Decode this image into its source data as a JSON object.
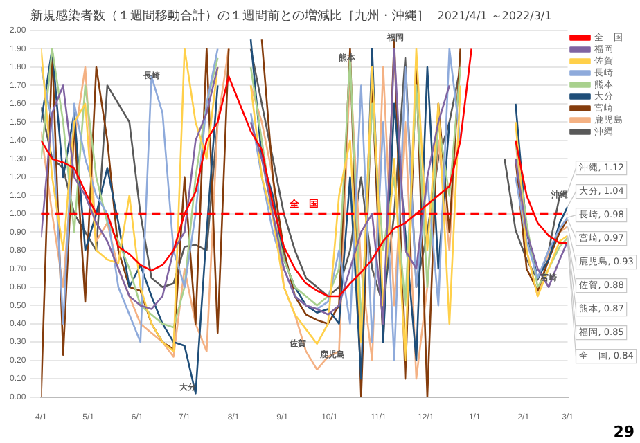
{
  "chart_data": {
    "type": "line",
    "title": "新規感染者数（１週間移動合計）の１週間前との増減比［九州・沖縄］",
    "subtitle": "2021/4/1 ～2022/3/1",
    "x": [
      "2021-04-01",
      "2021-04-08",
      "2021-04-15",
      "2021-04-22",
      "2021-04-29",
      "2021-05-06",
      "2021-05-13",
      "2021-05-20",
      "2021-05-27",
      "2021-06-03",
      "2021-06-10",
      "2021-06-17",
      "2021-06-24",
      "2021-07-01",
      "2021-07-08",
      "2021-07-15",
      "2021-07-22",
      "2021-07-29",
      "2021-08-05",
      "2021-08-12",
      "2021-08-19",
      "2021-08-26",
      "2021-09-02",
      "2021-09-09",
      "2021-09-16",
      "2021-09-23",
      "2021-09-30",
      "2021-10-07",
      "2021-10-14",
      "2021-10-21",
      "2021-10-28",
      "2021-11-04",
      "2021-11-11",
      "2021-11-18",
      "2021-11-25",
      "2021-12-02",
      "2021-12-09",
      "2021-12-16",
      "2021-12-23",
      "2021-12-30",
      "2022-01-06",
      "2022-01-13",
      "2022-01-20",
      "2022-01-27",
      "2022-02-03",
      "2022-02-10",
      "2022-02-17",
      "2022-02-24",
      "2022-03-01"
    ],
    "xlim": [
      "2021-04-01",
      "2022-03-01"
    ],
    "xticks": [
      {
        "value": "2021-04-01",
        "label": "4/1"
      },
      {
        "value": "2021-05-01",
        "label": "5/1"
      },
      {
        "value": "2021-06-01",
        "label": "6/1"
      },
      {
        "value": "2021-07-01",
        "label": "7/1"
      },
      {
        "value": "2021-08-01",
        "label": "8/1"
      },
      {
        "value": "2021-09-01",
        "label": "9/1"
      },
      {
        "value": "2021-10-01",
        "label": "10/1"
      },
      {
        "value": "2021-11-01",
        "label": "11/1"
      },
      {
        "value": "2021-12-01",
        "label": "12/1"
      },
      {
        "value": "2022-01-01",
        "label": "1/1"
      },
      {
        "value": "2022-02-01",
        "label": "2/1"
      },
      {
        "value": "2022-03-01",
        "label": "3/1"
      }
    ],
    "ylim": [
      0,
      2
    ],
    "yticks": [
      {
        "value": 0,
        "label": "0.00"
      },
      {
        "value": 0.1,
        "label": "0.10"
      },
      {
        "value": 0.2,
        "label": "0.20"
      },
      {
        "value": 0.3,
        "label": "0.30"
      },
      {
        "value": 0.4,
        "label": "0.40"
      },
      {
        "value": 0.5,
        "label": "0.50"
      },
      {
        "value": 0.6,
        "label": "0.60"
      },
      {
        "value": 0.7,
        "label": "0.70"
      },
      {
        "value": 0.8,
        "label": "0.80"
      },
      {
        "value": 0.9,
        "label": "0.90"
      },
      {
        "value": 1,
        "label": "1.00"
      },
      {
        "value": 1.1,
        "label": "1.10"
      },
      {
        "value": 1.2,
        "label": "1.20"
      },
      {
        "value": 1.3,
        "label": "1.30"
      },
      {
        "value": 1.4,
        "label": "1.40"
      },
      {
        "value": 1.5,
        "label": "1.50"
      },
      {
        "value": 1.6,
        "label": "1.60"
      },
      {
        "value": 1.7,
        "label": "1.70"
      },
      {
        "value": 1.8,
        "label": "1.80"
      },
      {
        "value": 1.9,
        "label": "1.90"
      },
      {
        "value": 2,
        "label": "2.00"
      }
    ],
    "grid": "y",
    "legend": "right",
    "marker": "none",
    "series": [
      {
        "name": "全　国",
        "color": "#ff0000",
        "values": [
          1.4,
          1.3,
          1.28,
          1.25,
          1.12,
          1.0,
          1.0,
          0.82,
          0.78,
          0.72,
          0.69,
          0.72,
          0.8,
          1.0,
          1.12,
          1.4,
          1.5,
          1.75,
          1.6,
          1.45,
          1.35,
          1.05,
          0.82,
          0.7,
          0.62,
          0.58,
          0.55,
          0.55,
          0.62,
          0.68,
          0.75,
          0.85,
          0.92,
          0.95,
          1.0,
          1.05,
          1.1,
          1.15,
          1.4,
          1.9,
          null,
          null,
          null,
          1.4,
          1.1,
          0.95,
          0.88,
          0.84,
          0.84
        ],
        "value_labels": [
          null,
          null,
          null,
          null,
          null,
          null,
          null,
          null,
          null,
          null,
          null,
          null,
          null,
          null,
          null,
          null,
          null,
          null,
          null,
          null,
          null,
          null,
          null,
          null,
          null,
          null,
          null,
          null,
          null,
          null,
          null,
          null,
          null,
          null,
          null,
          null,
          null,
          null,
          null,
          null,
          null,
          null,
          null,
          null,
          null,
          null,
          null,
          null,
          "全　国, 0.84"
        ]
      },
      {
        "name": "福岡",
        "color": "#8064a2",
        "values": [
          0.87,
          1.55,
          1.7,
          1.2,
          1.1,
          0.95,
          0.85,
          0.7,
          0.55,
          0.5,
          0.48,
          0.55,
          0.8,
          0.9,
          1.4,
          1.55,
          1.8,
          null,
          null,
          1.5,
          1.3,
          1.0,
          0.7,
          0.55,
          0.5,
          0.48,
          0.45,
          0.5,
          0.7,
          0.9,
          1.0,
          0.4,
          1.9,
          0.8,
          0.7,
          1.2,
          1.5,
          1.7,
          null,
          null,
          null,
          null,
          null,
          1.3,
          0.9,
          0.7,
          0.6,
          0.75,
          0.85
        ],
        "value_labels": [
          null,
          null,
          null,
          null,
          null,
          null,
          null,
          null,
          null,
          null,
          null,
          null,
          null,
          null,
          null,
          null,
          null,
          null,
          null,
          null,
          null,
          null,
          null,
          null,
          null,
          null,
          null,
          null,
          null,
          null,
          null,
          null,
          null,
          null,
          null,
          null,
          null,
          null,
          null,
          null,
          null,
          null,
          null,
          null,
          null,
          null,
          null,
          null,
          "福岡, 0.85"
        ]
      },
      {
        "name": "佐賀",
        "color": "#ffd04a",
        "values": [
          1.9,
          1.2,
          0.8,
          1.5,
          1.6,
          0.8,
          0.75,
          0.73,
          1.1,
          0.6,
          0.4,
          0.3,
          0.25,
          1.9,
          1.5,
          1.3,
          1.8,
          null,
          null,
          1.7,
          1.2,
          0.98,
          0.6,
          0.45,
          0.37,
          0.29,
          0.4,
          1.1,
          1.4,
          0.3,
          1.8,
          0.5,
          1.3,
          0.2,
          1.9,
          0.8,
          1.6,
          0.4,
          1.7,
          null,
          null,
          null,
          null,
          1.5,
          0.8,
          0.55,
          0.7,
          0.85,
          0.88
        ],
        "value_labels": [
          null,
          null,
          null,
          null,
          null,
          null,
          null,
          null,
          null,
          null,
          null,
          null,
          null,
          null,
          null,
          null,
          null,
          null,
          null,
          null,
          null,
          null,
          null,
          null,
          null,
          null,
          null,
          null,
          null,
          null,
          null,
          null,
          null,
          null,
          null,
          null,
          null,
          null,
          null,
          null,
          null,
          null,
          null,
          null,
          null,
          null,
          null,
          null,
          "佐賀, 0.88"
        ]
      },
      {
        "name": "長崎",
        "color": "#8eaadb",
        "values": [
          1.8,
          1.5,
          0.4,
          1.6,
          1.3,
          1.1,
          1.0,
          0.6,
          0.45,
          0.3,
          1.75,
          1.55,
          0.8,
          0.6,
          1.0,
          1.6,
          1.9,
          null,
          null,
          1.55,
          1.2,
          0.9,
          0.7,
          0.55,
          0.5,
          0.48,
          0.52,
          0.8,
          0.4,
          1.7,
          0.3,
          1.5,
          0.2,
          1.8,
          0.6,
          1.2,
          0.5,
          1.9,
          1.4,
          null,
          null,
          null,
          null,
          1.2,
          0.85,
          0.65,
          0.8,
          0.92,
          0.98
        ],
        "value_labels": [
          null,
          null,
          null,
          null,
          null,
          null,
          null,
          null,
          null,
          null,
          null,
          null,
          null,
          null,
          null,
          null,
          null,
          null,
          null,
          null,
          null,
          null,
          null,
          null,
          null,
          null,
          null,
          null,
          null,
          null,
          null,
          null,
          null,
          null,
          null,
          null,
          null,
          null,
          null,
          null,
          null,
          null,
          null,
          null,
          null,
          null,
          null,
          null,
          "長崎, 0.98"
        ]
      },
      {
        "name": "熊本",
        "color": "#a9d18e",
        "values": [
          1.3,
          1.9,
          1.5,
          0.9,
          1.7,
          1.2,
          0.95,
          0.85,
          0.7,
          0.5,
          0.45,
          0.4,
          0.38,
          0.6,
          1.2,
          1.6,
          1.85,
          null,
          null,
          1.8,
          1.4,
          1.0,
          0.75,
          0.6,
          0.55,
          0.5,
          0.55,
          0.7,
          1.85,
          0.4,
          1.6,
          0.8,
          1.2,
          0.5,
          1.7,
          0.6,
          1.5,
          1.1,
          1.8,
          null,
          null,
          null,
          null,
          1.4,
          0.95,
          0.6,
          0.7,
          0.82,
          0.87
        ],
        "value_labels": [
          null,
          null,
          null,
          null,
          null,
          null,
          null,
          null,
          null,
          null,
          null,
          null,
          null,
          null,
          null,
          null,
          null,
          null,
          null,
          null,
          null,
          null,
          null,
          null,
          null,
          null,
          null,
          null,
          null,
          null,
          null,
          null,
          null,
          null,
          null,
          null,
          null,
          null,
          null,
          null,
          null,
          null,
          null,
          null,
          null,
          null,
          null,
          null,
          "熊本, 0.87"
        ]
      },
      {
        "name": "大分",
        "color": "#1f4e79",
        "values": [
          1.5,
          1.9,
          1.2,
          1.55,
          0.8,
          1.0,
          1.25,
          0.95,
          0.6,
          0.72,
          0.55,
          0.4,
          0.3,
          0.28,
          0.02,
          0.9,
          1.7,
          null,
          null,
          1.95,
          1.3,
          1.1,
          0.75,
          0.6,
          0.5,
          0.46,
          0.48,
          0.4,
          1.2,
          0.1,
          1.9,
          0.3,
          1.6,
          0.9,
          0.2,
          1.8,
          0.7,
          1.5,
          null,
          null,
          null,
          null,
          null,
          1.6,
          0.9,
          0.65,
          0.75,
          0.95,
          1.04
        ],
        "value_labels": [
          null,
          null,
          null,
          null,
          null,
          null,
          null,
          null,
          null,
          null,
          null,
          null,
          null,
          null,
          null,
          null,
          null,
          null,
          null,
          null,
          null,
          null,
          null,
          null,
          null,
          null,
          null,
          null,
          null,
          null,
          null,
          null,
          null,
          null,
          null,
          null,
          null,
          null,
          null,
          null,
          null,
          null,
          null,
          null,
          null,
          null,
          null,
          null,
          "大分, 1.04"
        ]
      },
      {
        "name": "宮崎",
        "color": "#843c0c",
        "values": [
          0.0,
          1.9,
          0.23,
          1.5,
          0.52,
          1.8,
          1.4,
          0.8,
          0.6,
          0.58,
          0.4,
          0.3,
          0.26,
          1.2,
          0.4,
          1.9,
          0.35,
          1.9,
          null,
          null,
          1.95,
          1.2,
          0.8,
          0.55,
          0.45,
          0.42,
          0.4,
          0.5,
          1.9,
          0.0,
          1.7,
          0.3,
          1.95,
          0.1,
          1.8,
          0.0,
          1.6,
          0.9,
          1.9,
          null,
          null,
          null,
          null,
          1.3,
          0.7,
          0.58,
          0.75,
          0.9,
          0.97
        ],
        "value_labels": [
          null,
          null,
          null,
          null,
          null,
          null,
          null,
          null,
          null,
          null,
          null,
          null,
          null,
          null,
          null,
          null,
          null,
          null,
          null,
          null,
          null,
          null,
          null,
          null,
          null,
          null,
          null,
          null,
          null,
          null,
          null,
          null,
          null,
          null,
          null,
          null,
          null,
          null,
          null,
          null,
          null,
          null,
          null,
          null,
          null,
          null,
          null,
          null,
          "宮崎, 0.97"
        ]
      },
      {
        "name": "鹿児島",
        "color": "#f4b183",
        "values": [
          1.45,
          1.0,
          0.6,
          1.4,
          1.8,
          0.85,
          0.95,
          0.7,
          0.55,
          0.4,
          0.35,
          0.3,
          0.22,
          0.7,
          0.4,
          0.25,
          1.5,
          1.9,
          null,
          1.7,
          1.5,
          1.2,
          0.6,
          0.45,
          0.25,
          0.15,
          0.22,
          0.25,
          1.8,
          0.7,
          0.2,
          1.8,
          0.5,
          1.5,
          0.1,
          0.6,
          1.4,
          0.8,
          1.9,
          null,
          null,
          null,
          null,
          1.4,
          0.8,
          0.55,
          0.78,
          0.9,
          0.93
        ],
        "value_labels": [
          null,
          null,
          null,
          null,
          null,
          null,
          null,
          null,
          null,
          null,
          null,
          null,
          null,
          null,
          null,
          null,
          null,
          null,
          null,
          null,
          null,
          null,
          null,
          null,
          null,
          null,
          null,
          null,
          null,
          null,
          null,
          null,
          null,
          null,
          null,
          null,
          null,
          null,
          null,
          null,
          null,
          null,
          null,
          null,
          null,
          null,
          null,
          null,
          "鹿児島, 0.93"
        ]
      },
      {
        "name": "沖縄",
        "color": "#595959",
        "values": [
          1.58,
          1.3,
          1.25,
          1.0,
          0.9,
          0.8,
          1.7,
          1.6,
          1.5,
          1.0,
          0.65,
          0.6,
          0.62,
          0.82,
          0.83,
          0.8,
          1.5,
          null,
          null,
          1.9,
          1.6,
          1.3,
          1.0,
          0.8,
          0.65,
          0.6,
          0.55,
          0.6,
          0.8,
          1.2,
          0.7,
          0.5,
          1.0,
          1.85,
          0.6,
          0.9,
          1.3,
          1.5,
          1.8,
          null,
          null,
          null,
          1.3,
          0.91,
          0.75,
          0.64,
          0.8,
          1.1,
          1.12
        ],
        "value_labels": [
          null,
          null,
          null,
          null,
          null,
          null,
          null,
          null,
          null,
          null,
          null,
          null,
          null,
          null,
          null,
          null,
          null,
          null,
          null,
          null,
          null,
          null,
          null,
          null,
          null,
          null,
          null,
          null,
          null,
          null,
          null,
          null,
          null,
          null,
          null,
          null,
          null,
          null,
          null,
          null,
          null,
          null,
          null,
          null,
          null,
          null,
          null,
          null,
          "沖縄, 1.12"
        ]
      }
    ],
    "ref_lines": [
      {
        "axis": "y",
        "value": 1,
        "label": "全　国",
        "color": "#ff0000",
        "line_style": "dashed"
      }
    ],
    "annotations": [
      {
        "text": "長崎",
        "x": "2021-06-10",
        "y": 1.75
      },
      {
        "text": "熊本",
        "x": "2021-10-12",
        "y": 1.85
      },
      {
        "text": "福岡",
        "x": "2021-11-12",
        "y": 1.96
      },
      {
        "text": "佐賀",
        "x": "2021-09-11",
        "y": 0.29
      },
      {
        "text": "鹿児島",
        "x": "2021-10-03",
        "y": 0.23
      },
      {
        "text": "大分",
        "x": "2021-07-03",
        "y": 0.05
      },
      {
        "text": "沖縄",
        "x": "2022-02-24",
        "y": 1.1
      },
      {
        "text": "宮崎",
        "x": "2022-02-17",
        "y": 0.65
      },
      "29"
    ]
  }
}
